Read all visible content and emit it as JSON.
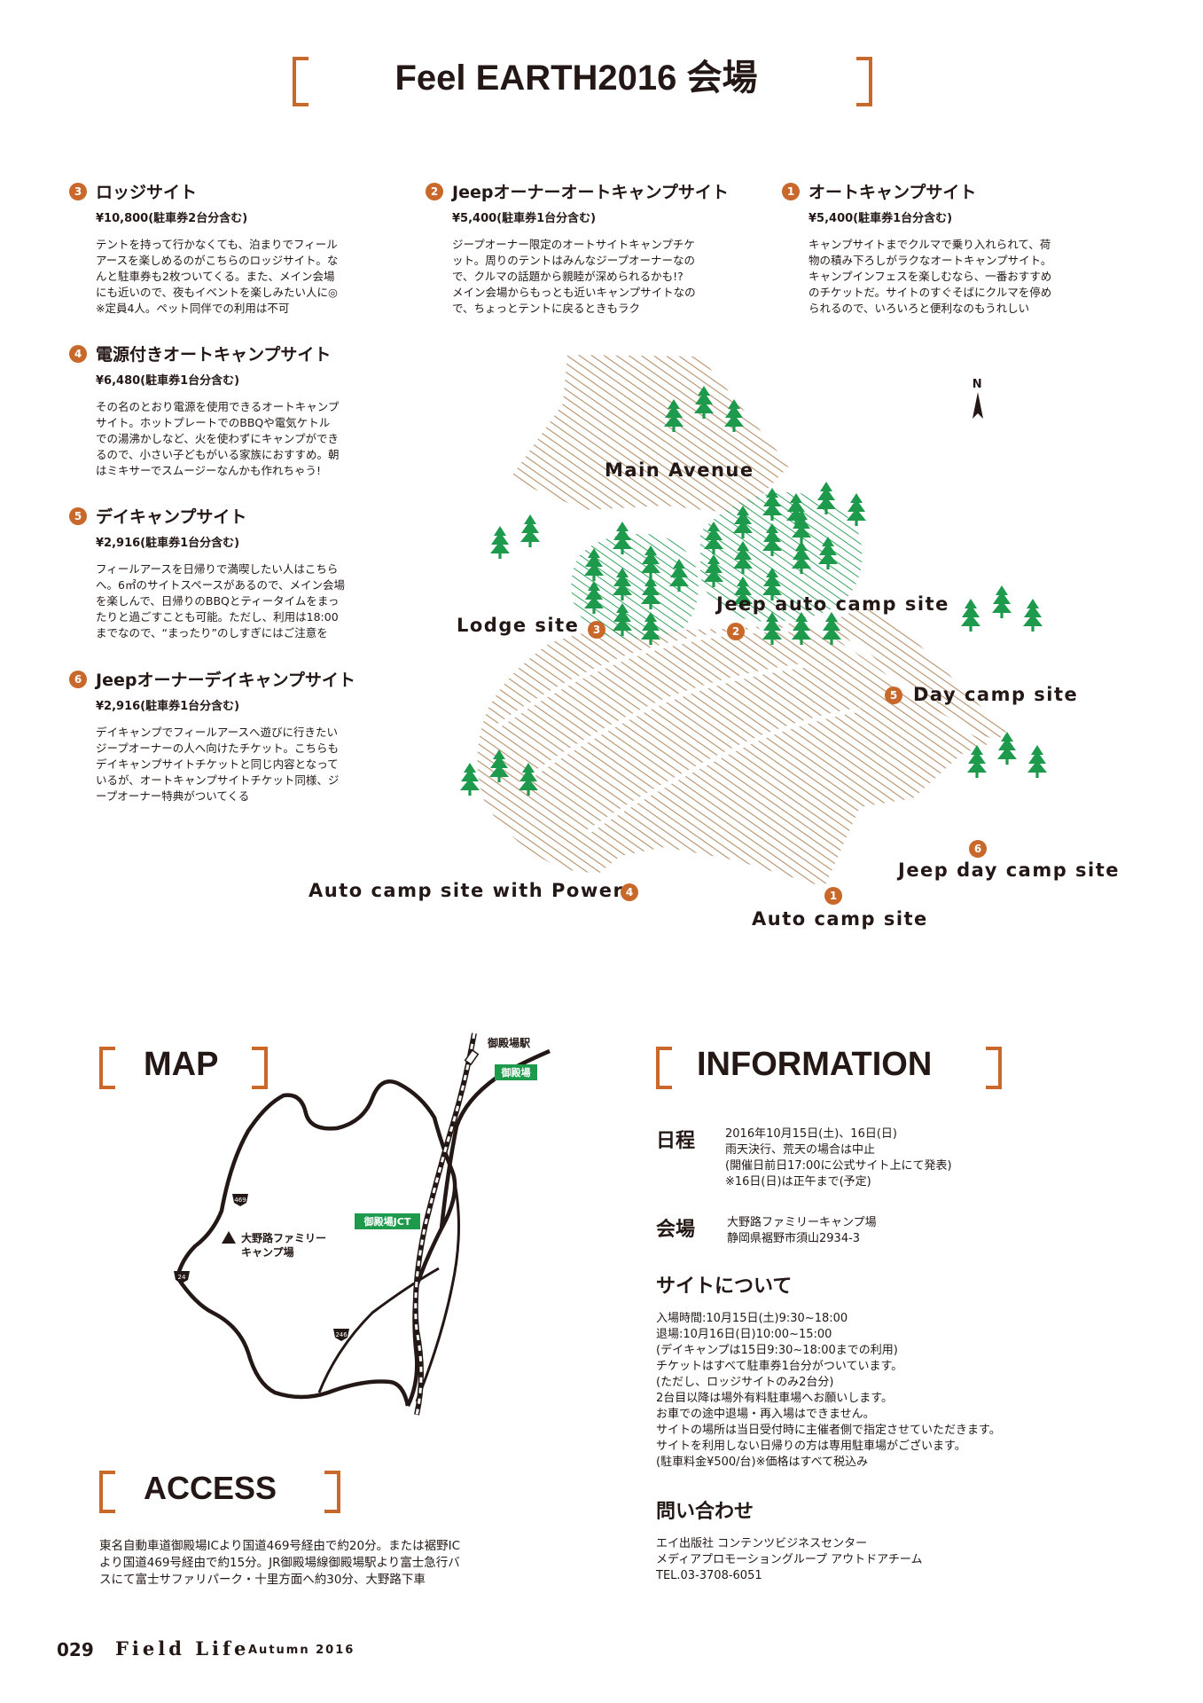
{
  "header": {
    "title": "Feel EARTH2016 会場"
  },
  "sites": [
    {
      "num": "3",
      "name": "ロッジサイト",
      "price": "¥10,800(駐車券2台分含む)",
      "desc": "テントを持って行かなくても、泊まりでフィール\nアースを楽しめるのがこちらのロッジサイト。な\nんと駐車券も2枚ついてくる。また、メイン会場\nにも近いので、夜もイベントを楽しみたい人に◎\n※定員4人。ペット同伴での利用は不可"
    },
    {
      "num": "2",
      "name": "Jeepオーナーオートキャンプサイト",
      "price": "¥5,400(駐車券1台分含む)",
      "desc": "ジープオーナー限定のオートサイトキャンプチケ\nット。周りのテントはみんなジープオーナーなの\nで、クルマの話題から親睦が深められるかも!?\nメイン会場からもっとも近いキャンプサイトなの\nで、ちょっとテントに戻るときもラク"
    },
    {
      "num": "1",
      "name": "オートキャンプサイト",
      "price": "¥5,400(駐車券1台分含む)",
      "desc": "キャンプサイトまでクルマで乗り入れられて、荷\n物の積み下ろしがラクなオートキャンプサイト。\nキャンプインフェスを楽しむなら、一番おすすめ\nのチケットだ。サイトのすぐそばにクルマを停め\nられるので、いろいろと便利なのもうれしい"
    },
    {
      "num": "4",
      "name": "電源付きオートキャンプサイト",
      "price": "¥6,480(駐車券1台分含む)",
      "desc": "その名のとおり電源を使用できるオートキャンプ\nサイト。ホットプレートでのBBQや電気ケトル\nでの湯沸かしなど、火を使わずにキャンプができ\nるので、小さい子どもがいる家族におすすめ。朝\nはミキサーでスムージーなんかも作れちゃう!"
    },
    {
      "num": "5",
      "name": "デイキャンプサイト",
      "price": "¥2,916(駐車券1台分含む)",
      "desc": "フィールアースを日帰りで満喫したい人はこちら\nへ。6㎡のサイトスペースがあるので、メイン会場\nを楽しんで、日帰りのBBQとティータイムをまっ\nたりと過ごすことも可能。ただし、利用は18:00\nまでなので、“まったり”のしすぎにはご注意を"
    },
    {
      "num": "6",
      "name": "Jeepオーナーデイキャンプサイト",
      "price": "¥2,916(駐車券1台分含む)",
      "desc": "デイキャンプでフィールアースへ遊びに行きたい\nジープオーナーの人へ向けたチケット。こちらも\nデイキャンプサイトチケットと同じ内容となって\nいるが、オートキャンプサイトチケット同様、ジ\nープオーナー特典がついてくる"
    }
  ],
  "venue_map": {
    "north": "N",
    "main_avenue": "Main Avenue",
    "lodge": "Lodge site",
    "jeep_auto": "Jeep auto camp site",
    "day_camp": "Day camp site",
    "jeep_day": "Jeep day camp site",
    "auto_power": "Auto camp site with Power",
    "auto_camp": "Auto camp site",
    "n1": "1",
    "n2": "2",
    "n3": "3",
    "n4": "4",
    "n5": "5",
    "n6": "6"
  },
  "map_section": {
    "title": "MAP",
    "station": "御殿場駅",
    "station_sign": "御殿場",
    "jct": "御殿場JCT",
    "camp_line1": "大野路ファミリー",
    "camp_line2": "キャンプ場",
    "route469": "469",
    "route24": "24",
    "route246": "246"
  },
  "access": {
    "title": "ACCESS",
    "text": "東名自動車道御殿場ICより国道469号経由で約20分。または裾野IC\nより国道469号経由で約15分。JR御殿場線御殿場駅より富士急行バ\nスにて富士サファリパーク・十里方面へ約30分、大野路下車"
  },
  "information": {
    "title": "INFORMATION",
    "schedule_label": "日程",
    "schedule_text": "2016年10月15日(土)、16日(日)\n雨天決行、荒天の場合は中止\n(開催日前日17:00に公式サイト上にて発表)\n※16日(日)は正午まで(予定)",
    "venue_label": "会場",
    "venue_text": "大野路ファミリーキャンプ場\n静岡県裾野市須山2934-3",
    "site_label": "サイトについて",
    "site_text": "入場時間:10月15日(土)9:30~18:00\n退場:10月16日(日)10:00~15:00\n(デイキャンプは15日9:30~18:00までの利用)\nチケットはすべて駐車券1台分がついています。\n(ただし、ロッジサイトのみ2台分)\n2台目以降は場外有料駐車場へお願いします。\nお車での途中退場・再入場はできません。\nサイトの場所は当日受付時に主催者側で指定させていただきます。\nサイトを利用しない日帰りの方は専用駐車場がございます。\n(駐車料金¥500/台)※価格はすべて税込み",
    "contact_label": "問い合わせ",
    "contact_text": "エイ出版社 コンテンツビジネスセンター\nメディアプロモーショングループ アウトドアチーム\nTEL.03-3708-6051"
  },
  "footer": {
    "page": "029",
    "magazine": "Field Life",
    "issue": "Autumn 2016"
  },
  "colors": {
    "accent": "#c8682a",
    "tree": "#1e9a4c",
    "hatch_brown": "#b58f6a",
    "hatch_green": "#1e9a4c"
  }
}
